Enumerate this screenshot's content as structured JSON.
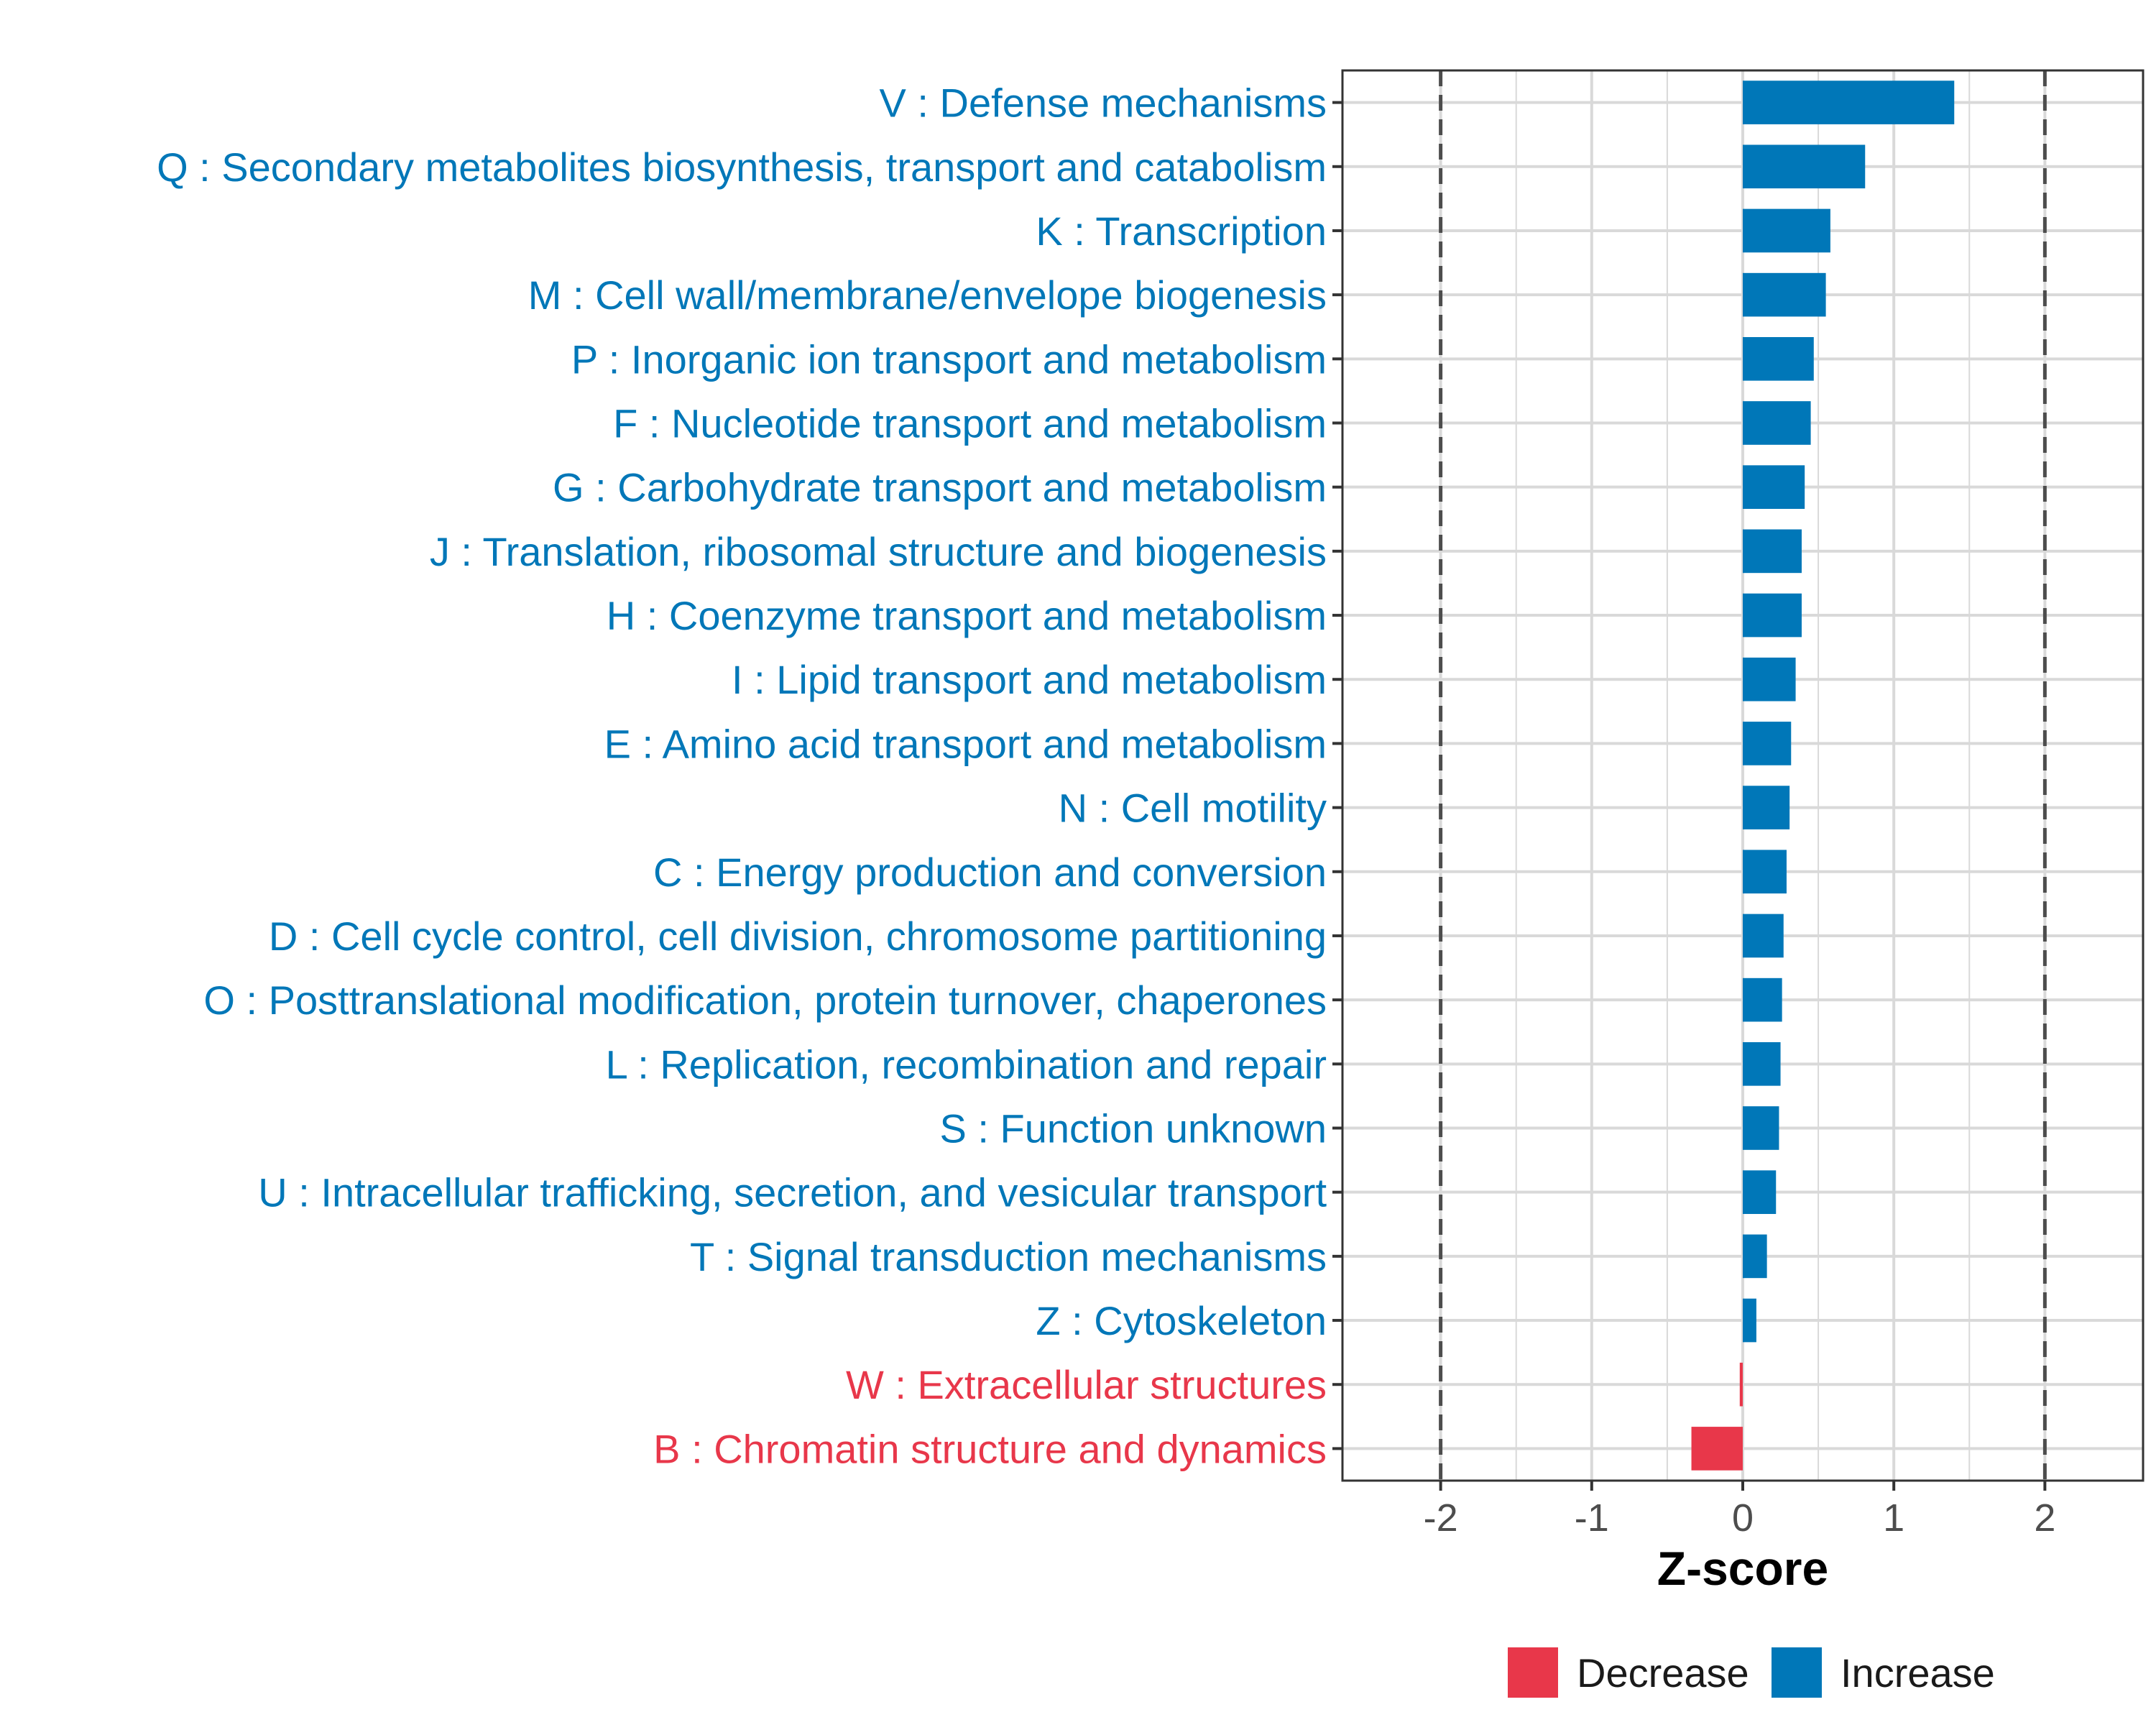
{
  "colors": {
    "increase": "#0077B8",
    "decrease": "#E8374A",
    "grid": "#d9d9d9",
    "panel_border": "#333333",
    "threshold_line": "#4d4d4d",
    "tick_text": "#4d4d4d"
  },
  "chart_data": {
    "type": "bar",
    "orientation": "horizontal",
    "title": "",
    "xlabel": "Z-score",
    "ylabel": "",
    "xlim": [
      -2.65,
      2.65
    ],
    "x_ticks": [
      -2,
      -1,
      0,
      1,
      2
    ],
    "x_tick_labels": [
      "-2",
      "-1",
      "0",
      "1",
      "2"
    ],
    "threshold_lines": [
      -2,
      2
    ],
    "grid": true,
    "legend_position": "bottom",
    "categories": [
      "V : Defense mechanisms",
      "Q : Secondary metabolites biosynthesis, transport and catabolism",
      "K : Transcription",
      "M : Cell wall/membrane/envelope biogenesis",
      "P : Inorganic ion transport and metabolism",
      "F : Nucleotide transport and metabolism",
      "G : Carbohydrate transport and metabolism",
      "J : Translation, ribosomal structure and biogenesis",
      "H : Coenzyme transport and metabolism",
      "I : Lipid transport and metabolism",
      "E : Amino acid transport and metabolism",
      "N : Cell motility",
      "C : Energy production and conversion",
      "D : Cell cycle control, cell division, chromosome partitioning",
      "O : Posttranslational modification, protein turnover, chaperones",
      "L : Replication, recombination and repair",
      "S : Function unknown",
      "U : Intracellular trafficking, secretion, and vesicular transport",
      "T : Signal transduction mechanisms",
      "Z : Cytoskeleton",
      "W : Extracellular structures",
      "B : Chromatin structure and dynamics"
    ],
    "values": [
      1.4,
      0.81,
      0.58,
      0.55,
      0.47,
      0.45,
      0.41,
      0.39,
      0.39,
      0.35,
      0.32,
      0.31,
      0.29,
      0.27,
      0.26,
      0.25,
      0.24,
      0.22,
      0.16,
      0.09,
      -0.02,
      -0.34
    ],
    "groups": [
      "Increase",
      "Increase",
      "Increase",
      "Increase",
      "Increase",
      "Increase",
      "Increase",
      "Increase",
      "Increase",
      "Increase",
      "Increase",
      "Increase",
      "Increase",
      "Increase",
      "Increase",
      "Increase",
      "Increase",
      "Increase",
      "Increase",
      "Increase",
      "Decrease",
      "Decrease"
    ],
    "legend": [
      "Decrease",
      "Increase"
    ]
  }
}
